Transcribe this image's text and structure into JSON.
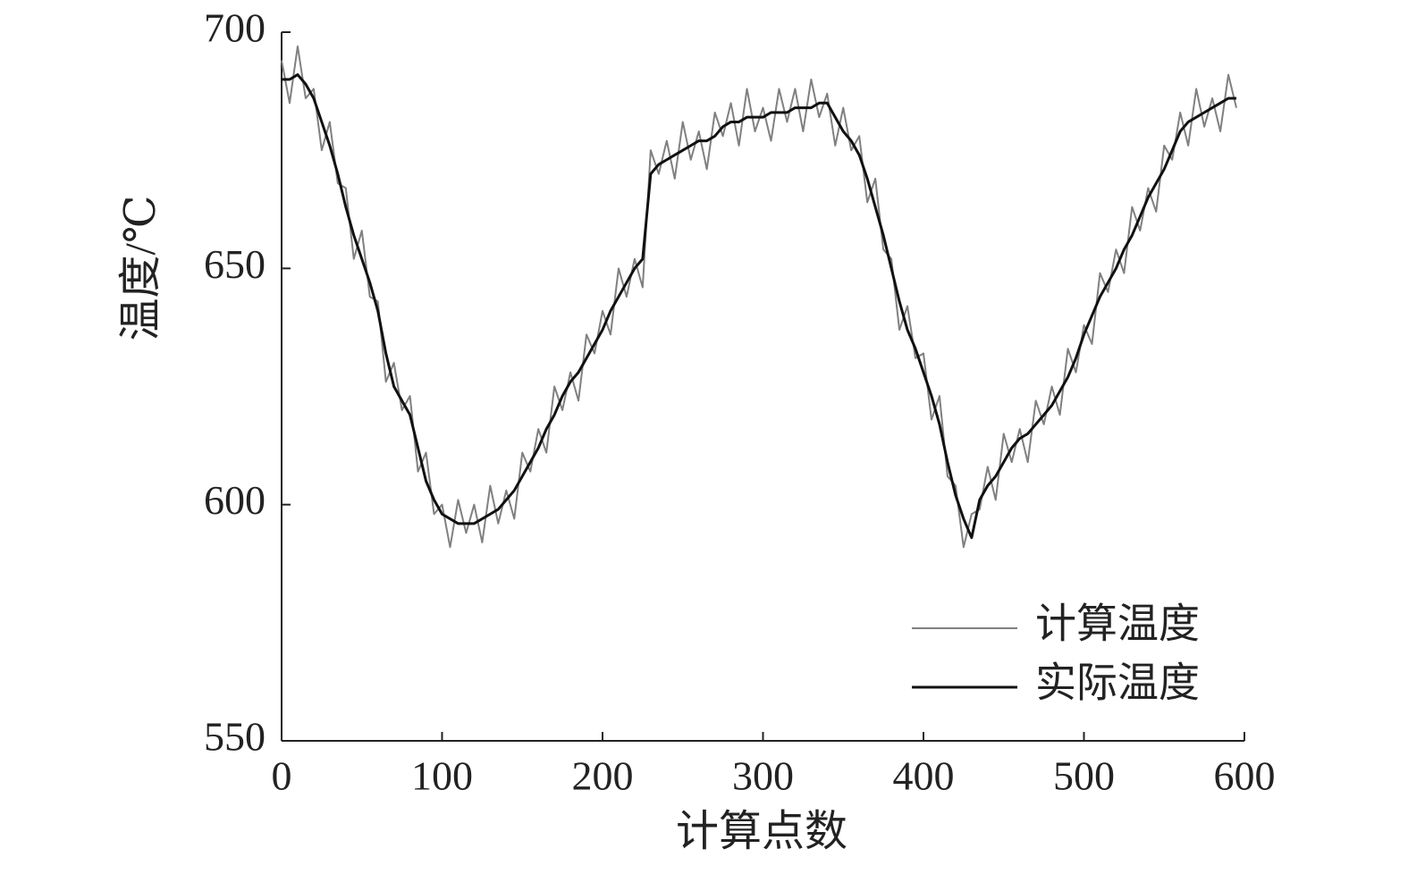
{
  "chart_data": {
    "type": "line",
    "xlabel": "计算点数",
    "ylabel": "温度/℃",
    "xlim": [
      0,
      600
    ],
    "xticks": [
      0,
      100,
      200,
      300,
      400,
      500,
      600
    ],
    "ylim": [
      550,
      700
    ],
    "yticks": [
      550,
      600,
      650,
      700
    ],
    "legend": "lower right",
    "x": [
      0,
      5,
      10,
      15,
      20,
      25,
      30,
      35,
      40,
      45,
      50,
      55,
      60,
      65,
      70,
      75,
      80,
      85,
      90,
      95,
      100,
      105,
      110,
      115,
      120,
      125,
      130,
      135,
      140,
      145,
      150,
      155,
      160,
      165,
      170,
      175,
      180,
      185,
      190,
      195,
      200,
      205,
      210,
      215,
      220,
      225,
      230,
      235,
      240,
      245,
      250,
      255,
      260,
      265,
      270,
      275,
      280,
      285,
      290,
      295,
      300,
      305,
      310,
      315,
      320,
      325,
      330,
      335,
      340,
      345,
      350,
      355,
      360,
      365,
      370,
      375,
      380,
      385,
      390,
      395,
      400,
      405,
      410,
      415,
      420,
      425,
      430,
      435,
      440,
      445,
      450,
      455,
      460,
      465,
      470,
      475,
      480,
      485,
      490,
      495,
      500,
      505,
      510,
      515,
      520,
      525,
      530,
      535,
      540,
      545,
      550,
      555,
      560,
      565,
      570,
      575,
      580,
      585,
      590,
      595
    ],
    "series": [
      {
        "name": "计算温度",
        "color": "#808080",
        "width": 2,
        "values": [
          694,
          685,
          697,
          686,
          688,
          675,
          681,
          668,
          667,
          652,
          658,
          644,
          643,
          626,
          630,
          620,
          623,
          607,
          611,
          598,
          600,
          591,
          601,
          594,
          600,
          592,
          604,
          596,
          603,
          597,
          611,
          607,
          616,
          611,
          625,
          620,
          628,
          622,
          636,
          632,
          641,
          636,
          650,
          644,
          652,
          646,
          675,
          670,
          677,
          669,
          681,
          673,
          679,
          671,
          683,
          678,
          685,
          676,
          688,
          679,
          684,
          677,
          688,
          681,
          688,
          679,
          690,
          682,
          687,
          676,
          684,
          675,
          678,
          664,
          669,
          654,
          652,
          637,
          642,
          631,
          632,
          618,
          623,
          606,
          604,
          591,
          598,
          599,
          608,
          601,
          615,
          609,
          616,
          609,
          622,
          617,
          625,
          619,
          633,
          628,
          638,
          634,
          649,
          645,
          654,
          649,
          663,
          658,
          667,
          662,
          676,
          673,
          683,
          676,
          688,
          680,
          686,
          679,
          691,
          684
        ]
      },
      {
        "name": "实际温度",
        "color": "#111111",
        "width": 3,
        "values": [
          690,
          690,
          691,
          689,
          686,
          681,
          676,
          670,
          663,
          657,
          652,
          647,
          641,
          632,
          625,
          622,
          619,
          612,
          605,
          601,
          598,
          597,
          596,
          596,
          596,
          597,
          598,
          599,
          601,
          603,
          606,
          609,
          612,
          616,
          619,
          623,
          626,
          628,
          631,
          634,
          637,
          641,
          644,
          647,
          650,
          652,
          670,
          672,
          673,
          674,
          675,
          676,
          677,
          677,
          678,
          680,
          681,
          681,
          682,
          682,
          682,
          683,
          683,
          683,
          684,
          684,
          684,
          685,
          685,
          682,
          679,
          677,
          674,
          669,
          663,
          657,
          650,
          643,
          637,
          633,
          628,
          623,
          617,
          609,
          602,
          597,
          593,
          601,
          604,
          606,
          609,
          612,
          614,
          615,
          617,
          619,
          621,
          624,
          627,
          631,
          636,
          640,
          644,
          647,
          650,
          654,
          657,
          661,
          665,
          668,
          671,
          675,
          679,
          681,
          682,
          683,
          684,
          685,
          686,
          686
        ]
      }
    ]
  }
}
